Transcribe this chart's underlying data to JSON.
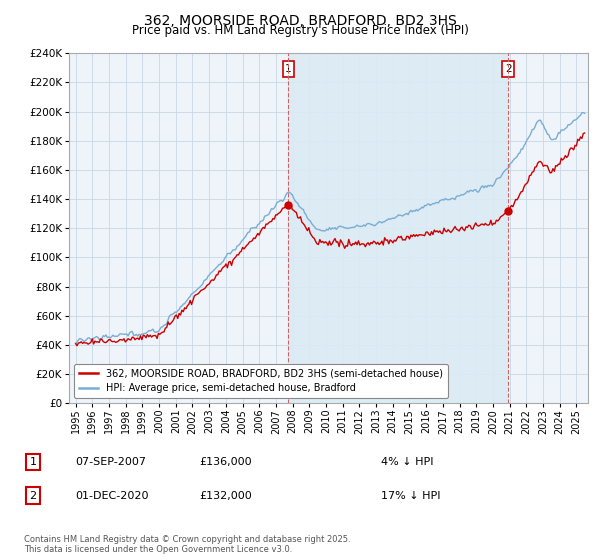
{
  "title_line1": "362, MOORSIDE ROAD, BRADFORD, BD2 3HS",
  "title_line2": "Price paid vs. HM Land Registry's House Price Index (HPI)",
  "legend_label_red": "362, MOORSIDE ROAD, BRADFORD, BD2 3HS (semi-detached house)",
  "legend_label_blue": "HPI: Average price, semi-detached house, Bradford",
  "annotation1_label": "1",
  "annotation1_date": "07-SEP-2007",
  "annotation1_price": "£136,000",
  "annotation1_hpi": "4% ↓ HPI",
  "annotation2_label": "2",
  "annotation2_date": "01-DEC-2020",
  "annotation2_price": "£132,000",
  "annotation2_hpi": "17% ↓ HPI",
  "copyright_text": "Contains HM Land Registry data © Crown copyright and database right 2025.\nThis data is licensed under the Open Government Licence v3.0.",
  "red_color": "#cc0000",
  "blue_color": "#7aadd4",
  "blue_fill_color": "#dceaf5",
  "annotation_vline_color": "#cc6666",
  "grid_color": "#c8d8e8",
  "bg_color": "#ffffff",
  "plot_bg_color": "#eef4fa",
  "ylim_min": 0,
  "ylim_max": 240000,
  "ytick_step": 20000,
  "sale1_year": 2007.75,
  "sale1_price": 136000,
  "sale2_year": 2020.92,
  "sale2_price": 132000,
  "year_start": 1995,
  "year_end": 2025.5
}
